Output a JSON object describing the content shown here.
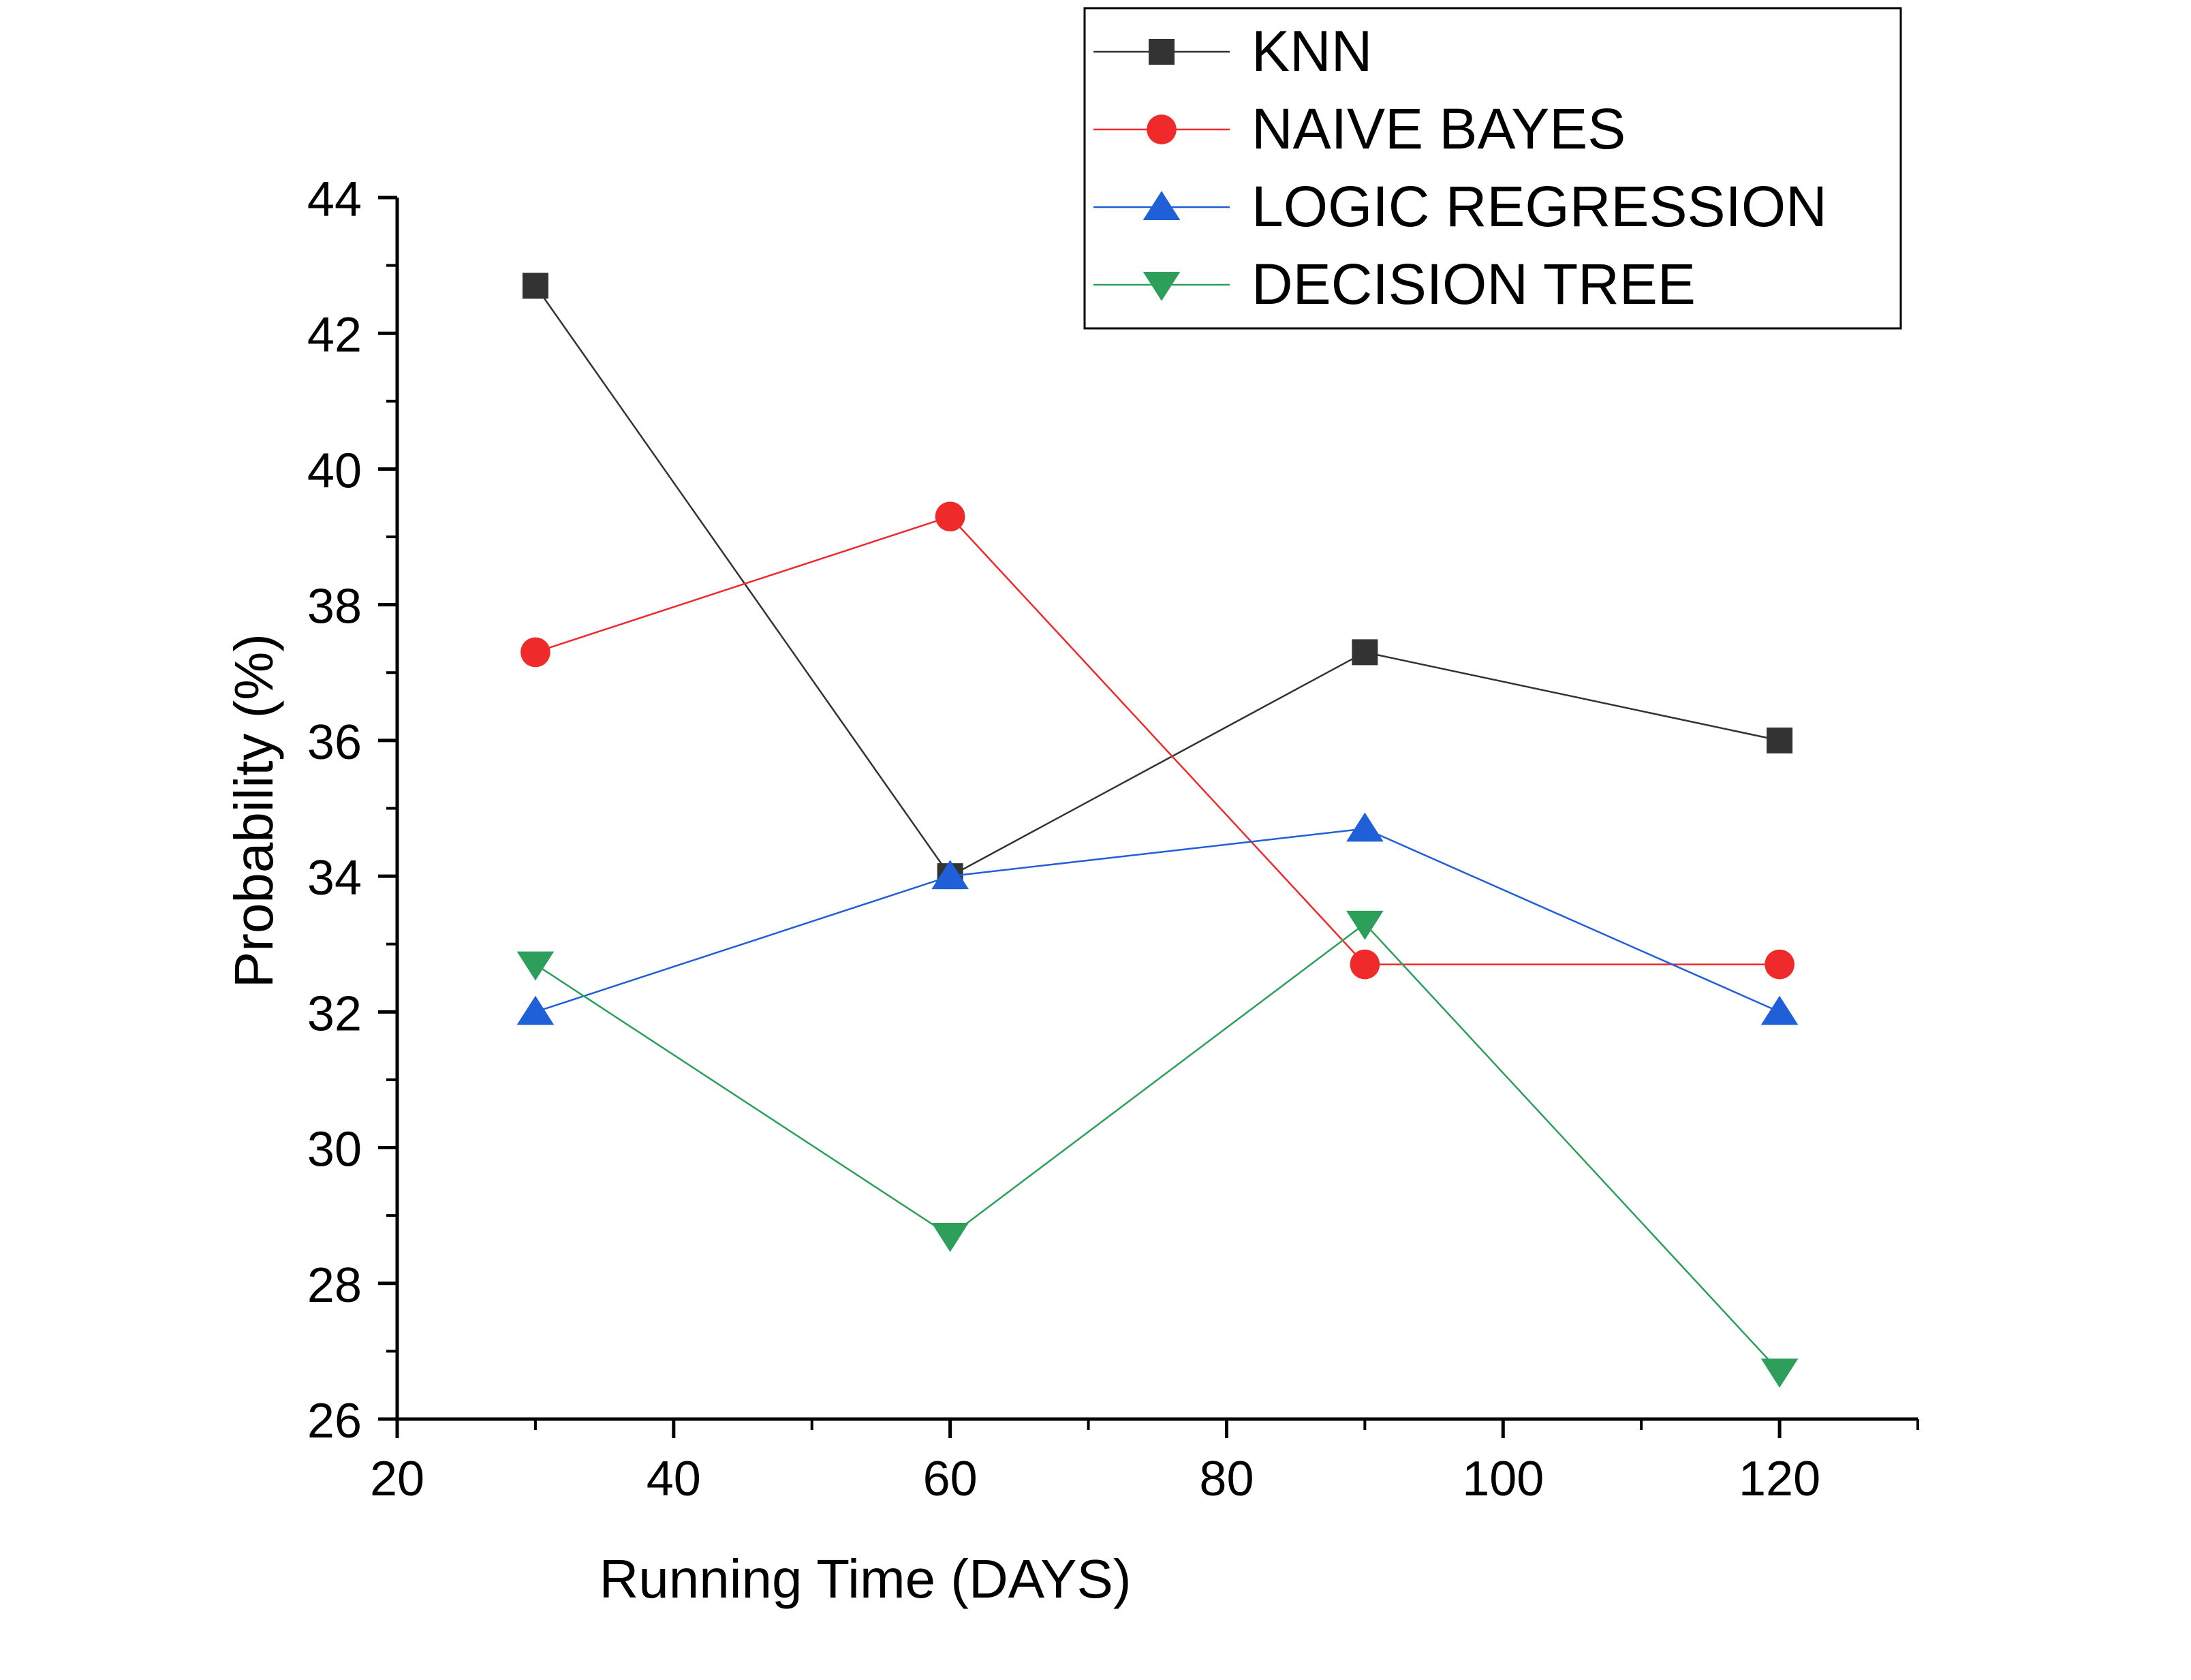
{
  "chart_data": {
    "type": "line",
    "xlabel": "Running Time (DAYS)",
    "ylabel": "Probability (%)",
    "xlim": [
      20,
      130
    ],
    "ylim": [
      26,
      44
    ],
    "xticks": [
      "20",
      "40",
      "60",
      "80",
      "100",
      "120"
    ],
    "yticks": [
      "26",
      "28",
      "30",
      "32",
      "34",
      "36",
      "38",
      "40",
      "42",
      "44"
    ],
    "x": [
      30,
      60,
      90,
      120
    ],
    "grid": false,
    "legend_position": "top-right",
    "series": [
      {
        "name": "KNN",
        "color": "#333333",
        "marker": "square",
        "values": [
          42.7,
          34.0,
          37.3,
          36.0
        ]
      },
      {
        "name": "NAIVE BAYES",
        "color": "#ee2a2a",
        "marker": "circle",
        "values": [
          37.3,
          39.3,
          32.7,
          32.7
        ]
      },
      {
        "name": "LOGIC REGRESSION",
        "color": "#1f5fd8",
        "marker": "triangle-up",
        "values": [
          32.0,
          34.0,
          34.7,
          32.0
        ]
      },
      {
        "name": "DECISION TREE",
        "color": "#2e9f5a",
        "marker": "triangle-down",
        "values": [
          32.7,
          28.7,
          33.3,
          26.7
        ]
      }
    ]
  }
}
